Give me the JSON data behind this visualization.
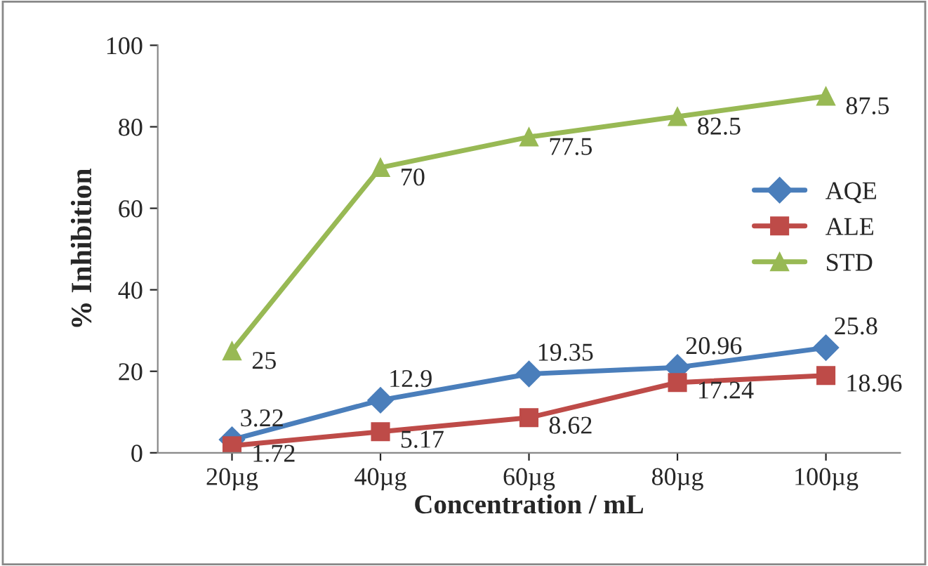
{
  "chart_data": {
    "type": "line",
    "xlabel": "Concentration / mL",
    "ylabel": "% Inhibition",
    "categories": [
      "20µg",
      "40µg",
      "60µg",
      "80µg",
      "100µg"
    ],
    "series": [
      {
        "name": "AQE",
        "color": "#4a7ebb",
        "marker": "diamond",
        "values": [
          3.22,
          12.9,
          19.35,
          20.96,
          25.8
        ]
      },
      {
        "name": "ALE",
        "color": "#be4b48",
        "marker": "square",
        "values": [
          1.72,
          5.17,
          8.62,
          17.24,
          18.96
        ]
      },
      {
        "name": "STD",
        "color": "#98b954",
        "marker": "triangle",
        "values": [
          25,
          70,
          77.5,
          82.5,
          87.5
        ]
      }
    ],
    "ylim": [
      0,
      100
    ],
    "yticks": [
      0,
      20,
      40,
      60,
      80,
      100
    ],
    "grid": false,
    "legend": "right",
    "data_labels": true,
    "line_style": "solid"
  }
}
